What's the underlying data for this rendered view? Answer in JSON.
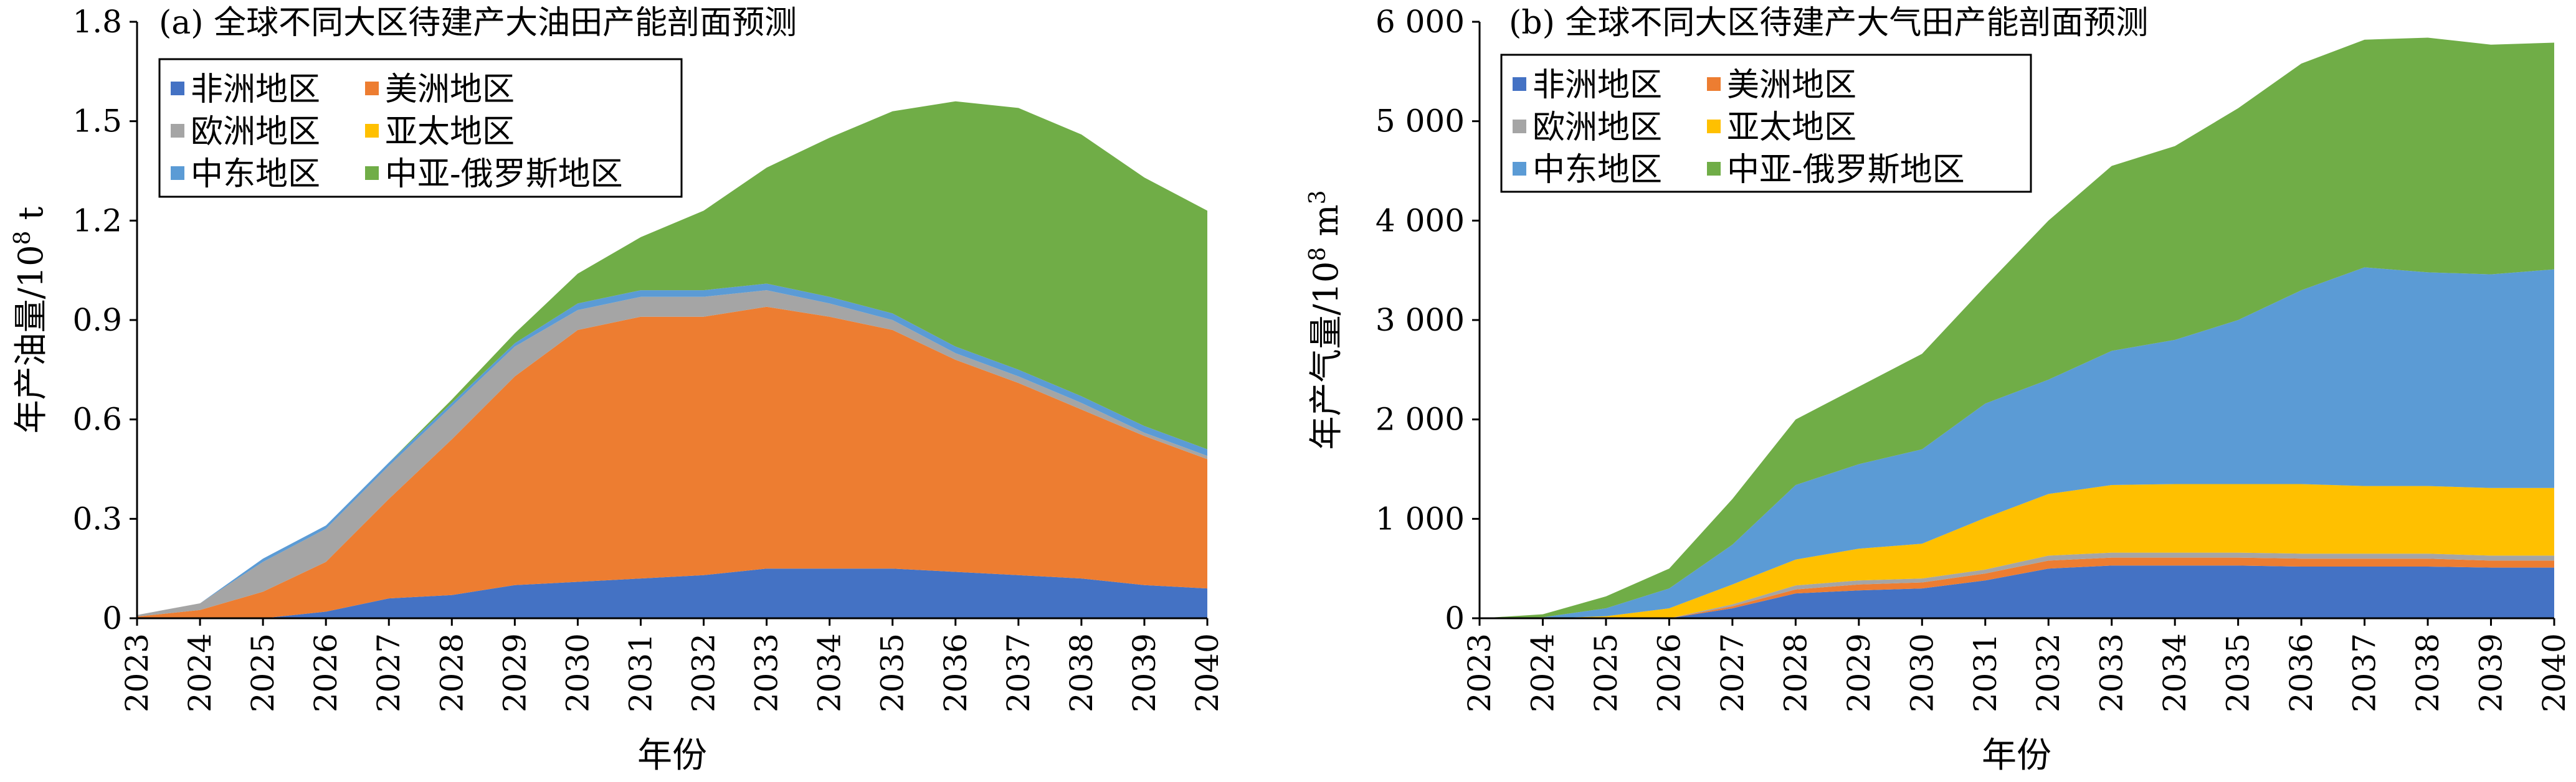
{
  "chart_data": [
    {
      "type": "area",
      "stacked": true,
      "title": "(a) 全球不同大区待建产大油田产能剖面预测",
      "xlabel": "年份",
      "ylabel": "年产油量/10",
      "ylabel_sup": "8",
      "ylabel_unit": " t",
      "ylim": [
        0,
        1.8
      ],
      "yticks": [
        0,
        0.3,
        0.6,
        0.9,
        1.2,
        1.5,
        1.8
      ],
      "ytick_labels": [
        "0",
        "0.3",
        "0.6",
        "0.9",
        "1.2",
        "1.5",
        "1.8"
      ],
      "x": [
        "2023",
        "2024",
        "2025",
        "2026",
        "2027",
        "2028",
        "2029",
        "2030",
        "2031",
        "2032",
        "2033",
        "2034",
        "2035",
        "2036",
        "2037",
        "2038",
        "2039",
        "2040"
      ],
      "grid": false,
      "legend_position": "top-left",
      "series": [
        {
          "name": "非洲地区",
          "color": "#4472C4",
          "values": [
            0,
            0,
            0,
            0.02,
            0.06,
            0.07,
            0.1,
            0.11,
            0.12,
            0.13,
            0.15,
            0.15,
            0.15,
            0.14,
            0.13,
            0.12,
            0.1,
            0.09
          ]
        },
        {
          "name": "美洲地区",
          "color": "#ED7D31",
          "values": [
            0.005,
            0.025,
            0.08,
            0.15,
            0.3,
            0.47,
            0.63,
            0.76,
            0.79,
            0.78,
            0.79,
            0.76,
            0.72,
            0.64,
            0.58,
            0.51,
            0.45,
            0.39
          ]
        },
        {
          "name": "欧洲地区",
          "color": "#A5A5A5",
          "values": [
            0.005,
            0.02,
            0.09,
            0.1,
            0.1,
            0.1,
            0.09,
            0.06,
            0.06,
            0.06,
            0.05,
            0.04,
            0.03,
            0.02,
            0.02,
            0.02,
            0.01,
            0.01
          ]
        },
        {
          "name": "亚太地区",
          "color": "#FFC000",
          "values": [
            0,
            0,
            0,
            0,
            0,
            0,
            0,
            0,
            0,
            0,
            0,
            0,
            0,
            0,
            0,
            0,
            0,
            0
          ]
        },
        {
          "name": "中东地区",
          "color": "#5B9BD5",
          "values": [
            0,
            0,
            0.01,
            0.01,
            0.01,
            0.01,
            0.01,
            0.02,
            0.02,
            0.02,
            0.02,
            0.02,
            0.02,
            0.02,
            0.02,
            0.02,
            0.02,
            0.02
          ]
        },
        {
          "name": "中亚-俄罗斯地区",
          "color": "#70AD47",
          "values": [
            0,
            0,
            0,
            0,
            0,
            0.01,
            0.03,
            0.09,
            0.16,
            0.24,
            0.35,
            0.48,
            0.61,
            0.74,
            0.79,
            0.79,
            0.75,
            0.72
          ]
        }
      ]
    },
    {
      "type": "area",
      "stacked": true,
      "title": "(b) 全球不同大区待建产大气田产能剖面预测",
      "xlabel": "年份",
      "ylabel": "年产气量/10",
      "ylabel_sup": "8",
      "ylabel_unit": " m",
      "ylabel_sup2": "3",
      "ylim": [
        0,
        6000
      ],
      "yticks": [
        0,
        1000,
        2000,
        3000,
        4000,
        5000,
        6000
      ],
      "ytick_labels": [
        "0",
        "1 000",
        "2 000",
        "3 000",
        "4 000",
        "5 000",
        "6 000"
      ],
      "x": [
        "2023",
        "2024",
        "2025",
        "2026",
        "2027",
        "2028",
        "2029",
        "2030",
        "2031",
        "2032",
        "2033",
        "2034",
        "2035",
        "2036",
        "2037",
        "2038",
        "2039",
        "2040"
      ],
      "grid": false,
      "legend_position": "top-left",
      "series": [
        {
          "name": "非洲地区",
          "color": "#4472C4",
          "values": [
            0,
            0,
            0,
            0,
            100,
            250,
            280,
            300,
            380,
            500,
            530,
            530,
            530,
            520,
            520,
            520,
            510,
            510
          ]
        },
        {
          "name": "美洲地区",
          "color": "#ED7D31",
          "values": [
            0,
            0,
            0,
            0,
            20,
            40,
            60,
            60,
            70,
            80,
            80,
            80,
            80,
            80,
            80,
            80,
            70,
            70
          ]
        },
        {
          "name": "欧洲地区",
          "color": "#A5A5A5",
          "values": [
            0,
            0,
            0,
            0,
            20,
            40,
            40,
            40,
            40,
            50,
            50,
            50,
            50,
            50,
            50,
            50,
            50,
            50
          ]
        },
        {
          "name": "亚太地区",
          "color": "#FFC000",
          "values": [
            0,
            0,
            20,
            100,
            200,
            260,
            320,
            350,
            520,
            620,
            680,
            690,
            690,
            700,
            680,
            680,
            680,
            680
          ]
        },
        {
          "name": "中东地区",
          "color": "#5B9BD5",
          "values": [
            0,
            10,
            80,
            200,
            400,
            750,
            850,
            950,
            1150,
            1150,
            1350,
            1450,
            1650,
            1950,
            2200,
            2150,
            2150,
            2200
          ]
        },
        {
          "name": "中亚-俄罗斯地区",
          "color": "#70AD47",
          "values": [
            0,
            30,
            120,
            200,
            460,
            660,
            780,
            960,
            1180,
            1600,
            1860,
            1950,
            2130,
            2280,
            2290,
            2360,
            2310,
            2280
          ]
        }
      ]
    }
  ]
}
